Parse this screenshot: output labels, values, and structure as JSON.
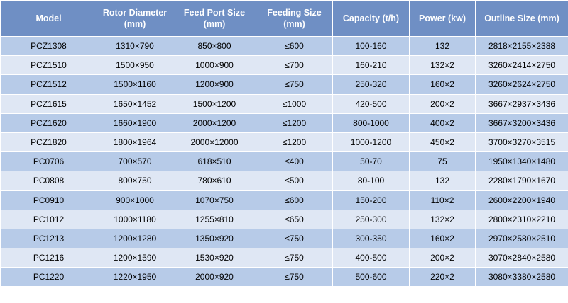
{
  "table": {
    "headers": [
      "Model",
      "Rotor Diameter (mm)",
      "Feed Port Size (mm)",
      "Feeding Size (mm)",
      "Capacity (t/h)",
      "Power (kw)",
      "Outline Size (mm)"
    ],
    "rows": [
      [
        "PCZ1308",
        "1310×790",
        "850×800",
        "≤600",
        "100-160",
        "132",
        "2818×2155×2388"
      ],
      [
        "PCZ1510",
        "1500×950",
        "1000×900",
        "≤700",
        "160-210",
        "132×2",
        "3260×2414×2750"
      ],
      [
        "PCZ1512",
        "1500×1160",
        "1200×900",
        "≤750",
        "250-320",
        "160×2",
        "3260×2624×2750"
      ],
      [
        "PCZ1615",
        "1650×1452",
        "1500×1200",
        "≤1000",
        "420-500",
        "200×2",
        "3667×2937×3436"
      ],
      [
        "PCZ1620",
        "1660×1900",
        "2000×1200",
        "≤1200",
        "800-1000",
        "400×2",
        "3667×3200×3436"
      ],
      [
        "PCZ1820",
        "1800×1964",
        "2000×12000",
        "≤1200",
        "1000-1200",
        "450×2",
        "3700×3270×3515"
      ],
      [
        "PC0706",
        "700×570",
        "618×510",
        "≤400",
        "50-70",
        "75",
        "1950×1340×1480"
      ],
      [
        "PC0808",
        "800×750",
        "780×610",
        "≤500",
        "80-100",
        "132",
        "2280×1790×1670"
      ],
      [
        "PC0910",
        "900×1000",
        "1070×750",
        "≤600",
        "150-200",
        "110×2",
        "2600×2200×1940"
      ],
      [
        "PC1012",
        "1000×1180",
        "1255×810",
        "≤650",
        "250-300",
        "132×2",
        "2800×2310×2210"
      ],
      [
        "PC1213",
        "1200×1280",
        "1350×920",
        "≤750",
        "300-350",
        "160×2",
        "2970×2580×2510"
      ],
      [
        "PC1216",
        "1200×1590",
        "1530×920",
        "≤750",
        "400-500",
        "200×2",
        "3070×2840×2580"
      ],
      [
        "PC1220",
        "1220×1950",
        "2000×920",
        "≤750",
        "500-600",
        "220×2",
        "3080×3380×2580"
      ]
    ]
  }
}
